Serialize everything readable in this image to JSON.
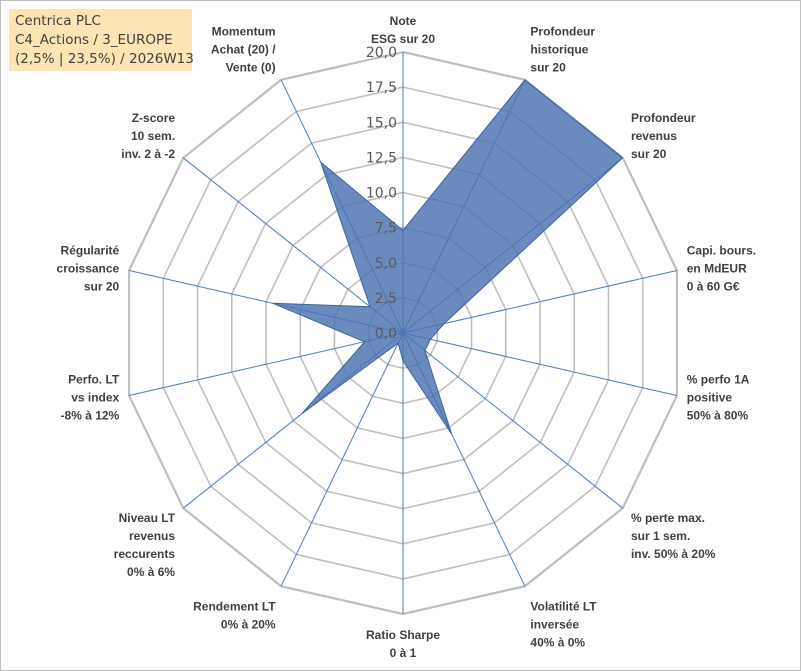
{
  "info": {
    "line1": "Centrica PLC",
    "line2": "C4_Actions / 3_EUROPE",
    "line3": "(2,5% | 23,5%) / 2026W13"
  },
  "chart_data": {
    "type": "radar",
    "title": "Centrica PLC",
    "rmin": 0,
    "rmax": 20,
    "ticks": [
      "0,0",
      "2,5",
      "5,0",
      "7,5",
      "10,0",
      "12,5",
      "15,0",
      "17,5",
      "20,0"
    ],
    "axes": [
      {
        "label": [
          "Note",
          "ESG sur 20"
        ],
        "value": 7.3
      },
      {
        "label": [
          "Profondeur",
          "historique",
          "sur 20"
        ],
        "value": 20.0
      },
      {
        "label": [
          "Profondeur",
          "revenus",
          "sur 20"
        ],
        "value": 20.0
      },
      {
        "label": [
          "Capi. bours.",
          "en MdEUR",
          "0 à 60 G€"
        ],
        "value": 3.0
      },
      {
        "label": [
          "% perfo 1A",
          "positive",
          "50% à 80%"
        ],
        "value": 2.0
      },
      {
        "label": [
          "% perte max.",
          "sur 1 sem.",
          "inv. 50% à 20%"
        ],
        "value": 2.0
      },
      {
        "label": [
          "Volatilité LT",
          "inversée",
          "40% à 0%"
        ],
        "value": 8.0
      },
      {
        "label": [
          "Ratio Sharpe",
          "0 à 1"
        ],
        "value": 2.0
      },
      {
        "label": [
          "Rendement LT",
          "0% à 20%"
        ],
        "value": 0.8
      },
      {
        "label": [
          "Niveau LT",
          "revenus",
          "reccurents",
          "0% à 6%"
        ],
        "value": 9.2
      },
      {
        "label": [
          "Perfo. LT",
          "vs index",
          "-8% à 12%"
        ],
        "value": 2.8
      },
      {
        "label": [
          "Régularité",
          "croissance",
          "sur 20"
        ],
        "value": 9.5
      },
      {
        "label": [
          "Z-score",
          "10 sem.",
          "inv. 2 à -2"
        ],
        "value": 3.0
      },
      {
        "label": [
          "Momentum",
          "Achat (20) /",
          "Vente (0)"
        ],
        "value": 13.5
      }
    ],
    "series_color": "#4a72b0",
    "grid_color": "#bfbfbf",
    "spoke_color": "#4a7ebb"
  }
}
